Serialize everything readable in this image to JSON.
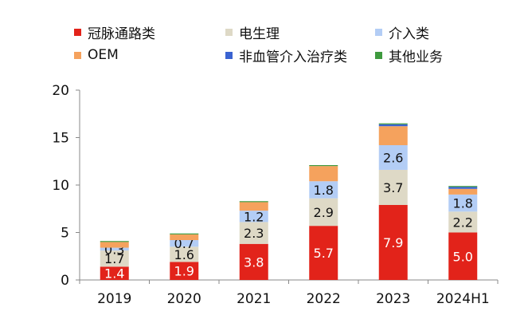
{
  "chart_data": {
    "type": "bar",
    "stacked": true,
    "categories": [
      "2019",
      "2020",
      "2021",
      "2022",
      "2023",
      "2024H1"
    ],
    "ylim": [
      0,
      20
    ],
    "yticks": [
      0,
      5,
      10,
      15,
      20
    ],
    "legend_placement": "top",
    "grid": false,
    "series": [
      {
        "name": "冠脉通路类",
        "color": "#e2231a",
        "values": [
          1.4,
          1.9,
          3.8,
          5.7,
          7.9,
          5.0
        ],
        "labels": [
          "1.4",
          "1.9",
          "3.8",
          "5.7",
          "7.9",
          "5.0"
        ],
        "label_color": "#ffffff"
      },
      {
        "name": "电生理",
        "color": "#ded9c6",
        "values": [
          1.7,
          1.6,
          2.3,
          2.9,
          3.7,
          2.2
        ],
        "labels": [
          "1.7",
          "1.6",
          "2.3",
          "2.9",
          "3.7",
          "2.2"
        ],
        "label_color": "#111111"
      },
      {
        "name": "介入类",
        "color": "#b3cdf5",
        "values": [
          0.3,
          0.7,
          1.2,
          1.8,
          2.6,
          1.8
        ],
        "labels": [
          "0.3",
          "0.7",
          "1.2",
          "1.8",
          "2.6",
          "1.8"
        ],
        "label_color": "#111111"
      },
      {
        "name": "OEM",
        "color": "#f5a25d",
        "values": [
          0.6,
          0.6,
          0.9,
          1.6,
          2.0,
          0.6
        ],
        "labels": [],
        "label_color": "#111111"
      },
      {
        "name": "非血管介入治疗类",
        "color": "#3a63d1",
        "values": [
          0.0,
          0.0,
          0.0,
          0.0,
          0.2,
          0.2
        ],
        "labels": [],
        "label_color": "#111111"
      },
      {
        "name": "其他业务",
        "color": "#3e9a3e",
        "values": [
          0.1,
          0.1,
          0.1,
          0.1,
          0.1,
          0.1
        ],
        "labels": [],
        "label_color": "#111111"
      }
    ]
  }
}
